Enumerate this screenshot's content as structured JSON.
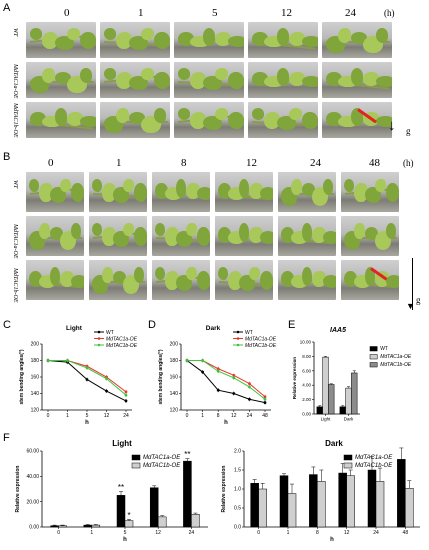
{
  "panels": {
    "A": {
      "letter": "A",
      "times": [
        "0",
        "1",
        "5",
        "12",
        "24"
      ],
      "unit": "(h)",
      "rows": [
        "WT",
        "MdTAC1a-OE",
        "MdTAC1b-OE"
      ],
      "gravity": "g"
    },
    "B": {
      "letter": "B",
      "times": [
        "0",
        "1",
        "8",
        "12",
        "24",
        "48"
      ],
      "unit": "(h)",
      "rows": [
        "WT",
        "MdTAC1a-OE",
        "MdTAC1b-OE"
      ],
      "gravity": "g"
    },
    "C": {
      "letter": "C"
    },
    "D": {
      "letter": "D"
    },
    "E": {
      "letter": "E"
    },
    "F": {
      "letter": "F"
    }
  },
  "chart_data": [
    {
      "id": "C",
      "type": "line",
      "title": "Light",
      "xlabel": "h",
      "ylabel": "stem bending angles(°)",
      "categories": [
        "0",
        "1",
        "5",
        "12",
        "24"
      ],
      "ylim": [
        120,
        200
      ],
      "yticks": [
        "120",
        "140",
        "160",
        "180",
        "200"
      ],
      "series": [
        {
          "name": "WT",
          "color": "#000000",
          "values": [
            180,
            178,
            157,
            143,
            131
          ]
        },
        {
          "name": "MdTAC1a-OE",
          "color": "#e8352b",
          "values": [
            180,
            180,
            173,
            160,
            142
          ]
        },
        {
          "name": "MdTAC1b-OE",
          "color": "#3cc43c",
          "values": [
            180,
            180,
            171,
            158,
            138
          ]
        }
      ]
    },
    {
      "id": "D",
      "type": "line",
      "title": "Dark",
      "xlabel": "h",
      "ylabel": "stem bending angles(°)",
      "categories": [
        "0",
        "1",
        "8",
        "12",
        "24",
        "48"
      ],
      "ylim": [
        120,
        200
      ],
      "yticks": [
        "120",
        "140",
        "160",
        "180",
        "200"
      ],
      "series": [
        {
          "name": "WT",
          "color": "#000000",
          "values": [
            180,
            166,
            144,
            140,
            133,
            129
          ]
        },
        {
          "name": "MdTAC1a-OE",
          "color": "#e8352b",
          "values": [
            180,
            180,
            170,
            162,
            152,
            136
          ]
        },
        {
          "name": "MdTAC1b-OE",
          "color": "#3cc43c",
          "values": [
            180,
            180,
            167,
            159,
            148,
            133
          ]
        }
      ]
    },
    {
      "id": "E",
      "type": "bar",
      "title": "IAA5",
      "ylabel": "Relative expression",
      "categories": [
        "Light",
        "Dark"
      ],
      "ylim": [
        0,
        10
      ],
      "yticks": [
        "0.00",
        "2.00",
        "4.00",
        "6.00",
        "8.00",
        "10.00"
      ],
      "series": [
        {
          "name": "WT",
          "color": "#000000",
          "values": [
            1.0,
            1.0
          ],
          "errors": [
            0.15,
            0.15
          ]
        },
        {
          "name": "MdTAC1a-OE",
          "color": "#cfcfcf",
          "values": [
            7.9,
            3.6
          ],
          "errors": [
            0.1,
            0.2
          ]
        },
        {
          "name": "MdTAC1b-OE",
          "color": "#8c8c8c",
          "values": [
            4.1,
            5.7
          ],
          "errors": [
            0.1,
            0.3
          ]
        }
      ]
    },
    {
      "id": "F-light",
      "type": "bar",
      "title": "Light",
      "xlabel": "h",
      "ylabel": "Relative expression",
      "categories": [
        "0",
        "1",
        "5",
        "12",
        "24"
      ],
      "ylim": [
        0,
        60
      ],
      "yticks": [
        "0.00",
        "20.00",
        "40.00",
        "60.00"
      ],
      "series": [
        {
          "name": "MdTAC1a-OE",
          "color": "#000000",
          "values": [
            1,
            1.5,
            25,
            31,
            52
          ],
          "errors": [
            0.5,
            0.5,
            3,
            1.5,
            2
          ]
        },
        {
          "name": "MdTAC1b-OE",
          "color": "#cfcfcf",
          "values": [
            1,
            1.5,
            5,
            8,
            10
          ],
          "errors": [
            0.5,
            0.5,
            1,
            1,
            1
          ]
        }
      ],
      "annotations": [
        {
          "category": "5",
          "series": 0,
          "text": "**"
        },
        {
          "category": "5",
          "series": 1,
          "text": "*"
        },
        {
          "category": "24",
          "series": 0,
          "text": "**"
        }
      ]
    },
    {
      "id": "F-dark",
      "type": "bar",
      "title": "Dark",
      "xlabel": "h",
      "ylabel": "Relative expression",
      "categories": [
        "0",
        "1",
        "8",
        "12",
        "24",
        "48"
      ],
      "ylim": [
        0,
        2
      ],
      "yticks": [
        "0.0",
        "0.5",
        "1.0",
        "1.5",
        "2.0"
      ],
      "series": [
        {
          "name": "MdTAC1a-OE",
          "color": "#000000",
          "values": [
            1.15,
            1.35,
            1.38,
            1.42,
            1.5,
            1.78
          ],
          "errors": [
            0.1,
            0.05,
            0.2,
            0.25,
            0.35,
            0.3
          ]
        },
        {
          "name": "MdTAC1b-OE",
          "color": "#cfcfcf",
          "values": [
            1.0,
            0.88,
            1.2,
            1.35,
            1.2,
            1.02
          ],
          "errors": [
            0.15,
            0.25,
            0.3,
            0.15,
            0.35,
            0.2
          ]
        }
      ]
    }
  ]
}
